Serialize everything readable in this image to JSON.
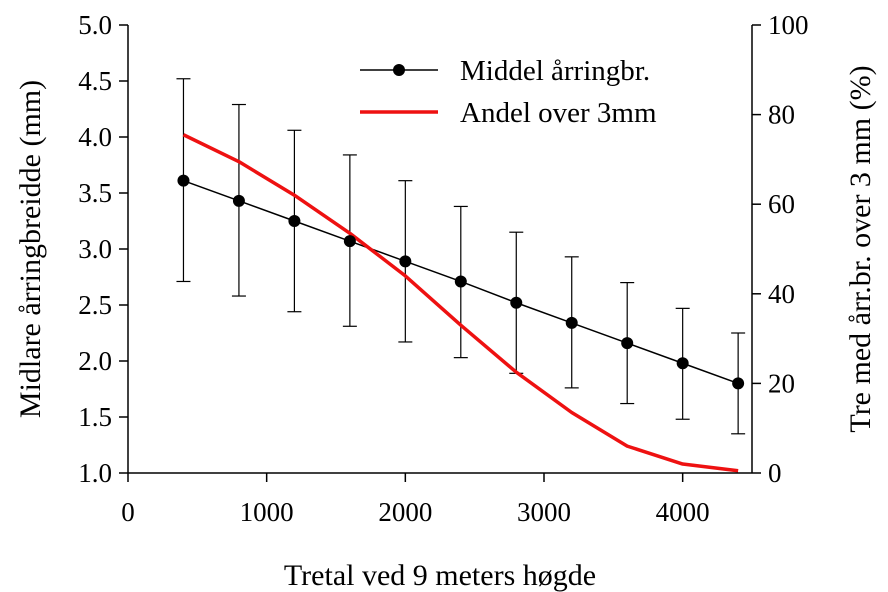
{
  "chart_data": {
    "type": "line",
    "xlabel": "Tretal ved 9 meters høgde",
    "ylabel_left": "Midlare årringbreidde (mm)",
    "ylabel_right": "Tre med årr.br. over 3 mm (%)",
    "xlim": [
      0,
      4500
    ],
    "ylim_left": [
      1.0,
      5.0
    ],
    "ylim_right": [
      0,
      100
    ],
    "x_ticks": [
      0,
      1000,
      2000,
      3000,
      4000
    ],
    "x_tick_labels": [
      "0",
      "1000",
      "2000",
      "3000",
      "4000"
    ],
    "y_left_ticks": [
      1.0,
      1.5,
      2.0,
      2.5,
      3.0,
      3.5,
      4.0,
      4.5,
      5.0
    ],
    "y_left_tick_labels": [
      "1.0",
      "1.5",
      "2.0",
      "2.5",
      "3.0",
      "3.5",
      "4.0",
      "4.5",
      "5.0"
    ],
    "y_right_ticks": [
      0,
      20,
      40,
      60,
      80,
      100
    ],
    "y_right_tick_labels": [
      "0",
      "20",
      "40",
      "60",
      "80",
      "100"
    ],
    "grid": false,
    "legend_position": "top-right",
    "series": [
      {
        "name": "Middel årringbr.",
        "axis": "left",
        "color": "#000000",
        "marker": "circle",
        "x": [
          400,
          800,
          1200,
          1600,
          2000,
          2400,
          2800,
          3200,
          3600,
          4000,
          4400
        ],
        "y": [
          3.61,
          3.43,
          3.25,
          3.07,
          2.89,
          2.71,
          2.52,
          2.34,
          2.16,
          1.98,
          1.8
        ],
        "error_low": [
          2.71,
          2.58,
          2.44,
          2.31,
          2.17,
          2.03,
          1.89,
          1.76,
          1.62,
          1.48,
          1.35
        ],
        "error_high": [
          4.52,
          4.29,
          4.06,
          3.84,
          3.61,
          3.38,
          3.15,
          2.93,
          2.7,
          2.47,
          2.25
        ]
      },
      {
        "name": "Andel over 3mm",
        "axis": "right",
        "color": "#ee1111",
        "marker": "none",
        "x": [
          400,
          800,
          1200,
          1600,
          2000,
          2400,
          2800,
          3200,
          3600,
          4000,
          4400
        ],
        "y": [
          75.5,
          69.5,
          62.0,
          53.5,
          44.0,
          33.0,
          22.5,
          13.5,
          6.0,
          2.0,
          0.5
        ]
      }
    ]
  }
}
